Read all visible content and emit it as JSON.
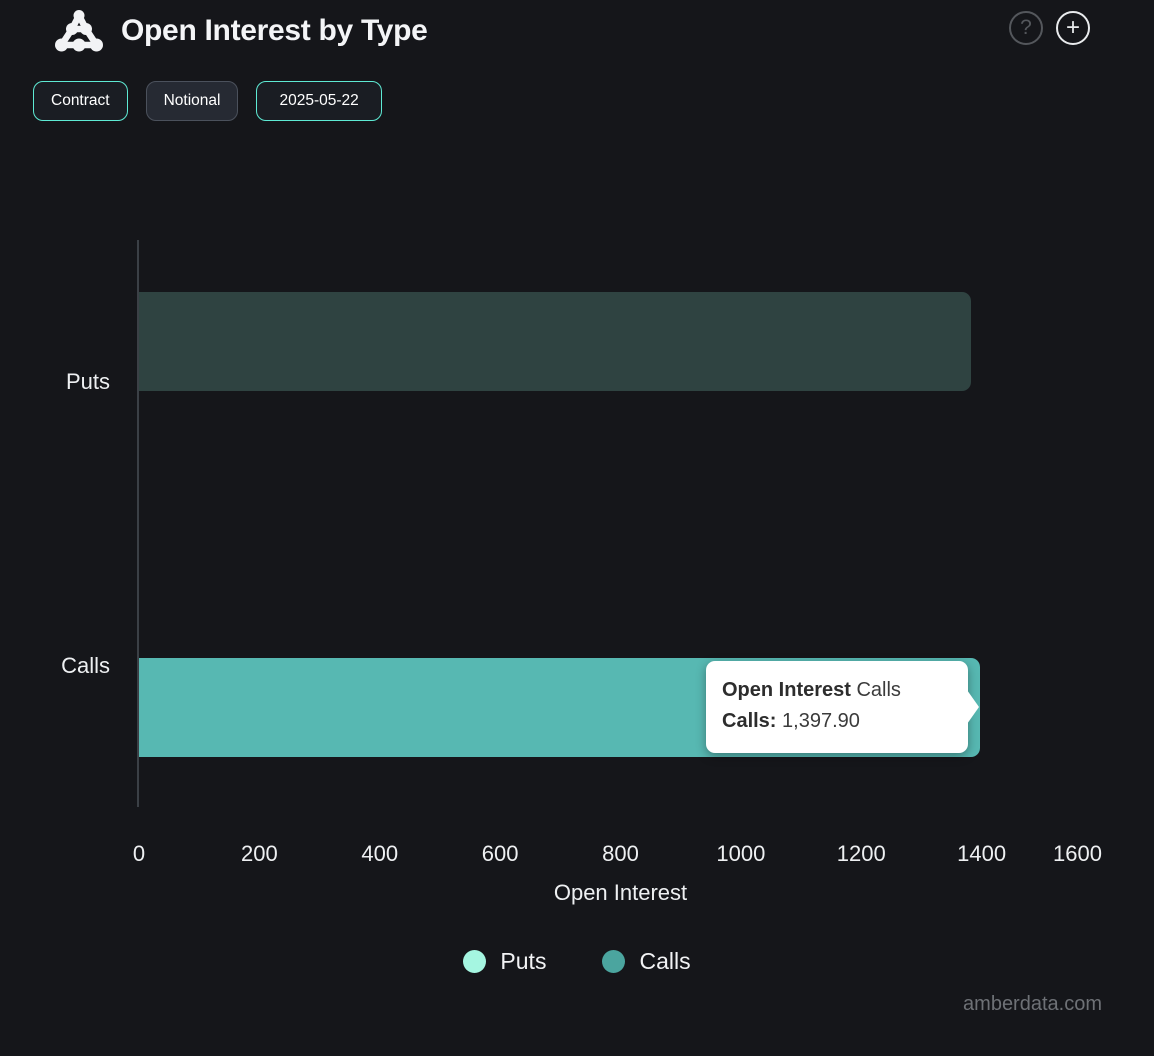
{
  "header": {
    "title": "Open Interest by Type",
    "help_glyph": "?",
    "add_glyph": "+"
  },
  "toolbar": {
    "buttons": [
      {
        "label": "Contract",
        "state": "active"
      },
      {
        "label": "Notional",
        "state": "inactive"
      },
      {
        "label": "2025-05-22",
        "state": "active"
      }
    ]
  },
  "chart_data": {
    "type": "bar",
    "orientation": "horizontal",
    "title": "Open Interest by Type",
    "categories": [
      "Puts",
      "Calls"
    ],
    "values": [
      1383,
      1397.9
    ],
    "xlabel": "Open Interest",
    "x_ticks": [
      0,
      200,
      400,
      600,
      800,
      1000,
      1200,
      1400,
      1600
    ],
    "xlim": [
      0,
      1600
    ],
    "grid": false,
    "legend_position": "bottom",
    "legend": [
      {
        "label": "Puts",
        "color": "#a5f6e1"
      },
      {
        "label": "Calls",
        "color": "#4ba59f"
      }
    ],
    "bar_display_colors": [
      "#2f4341",
      "#57b8b2"
    ],
    "hover_state": "Calls bar hovered; Puts series shown dimmed"
  },
  "tooltip": {
    "title_bold": "Open Interest",
    "title_rest": " Calls",
    "row_bold": "Calls:",
    "row_value": " 1,397.90"
  },
  "footer": {
    "watermark": "amberdata.com"
  },
  "colors": {
    "background": "#15161a",
    "accent": "#5eead4",
    "axis_line": "#3b4046",
    "text": "#eef0f2"
  }
}
